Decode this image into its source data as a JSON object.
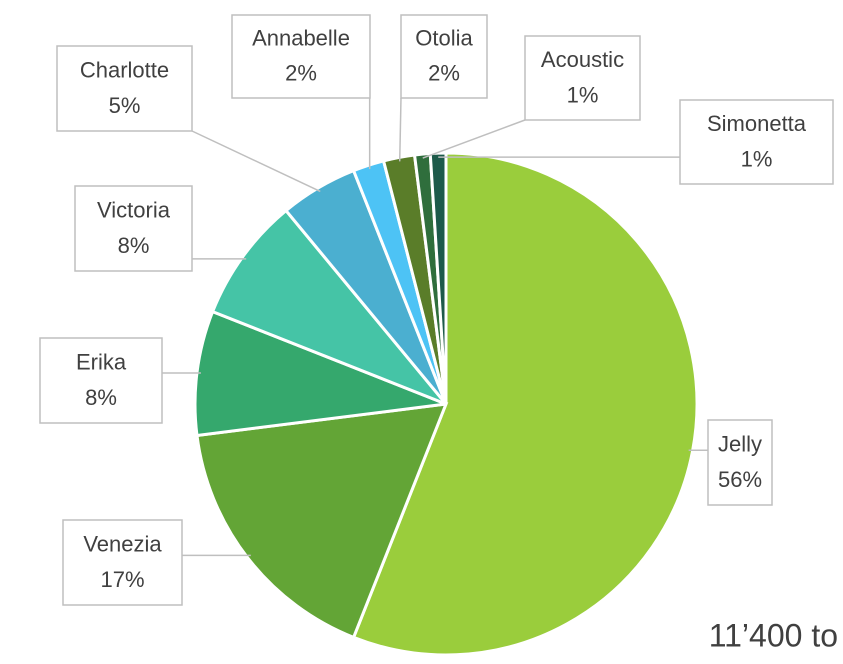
{
  "chart_data": {
    "type": "pie",
    "categories": [
      "Jelly",
      "Venezia",
      "Erika",
      "Victoria",
      "Charlotte",
      "Annabelle",
      "Otolia",
      "Acoustic",
      "Simonetta"
    ],
    "values": [
      56,
      17,
      8,
      8,
      5,
      2,
      2,
      1,
      1
    ],
    "value_labels": [
      "56%",
      "17%",
      "8%",
      "8%",
      "5%",
      "2%",
      "2%",
      "1%",
      "1%"
    ],
    "colors": [
      "#9acd3c",
      "#63a536",
      "#35a86d",
      "#45c4a6",
      "#4bafd0",
      "#4dc3f5",
      "#5a7d29",
      "#2f6e3c",
      "#1d5a4a"
    ],
    "annotation": "11’400 to"
  }
}
